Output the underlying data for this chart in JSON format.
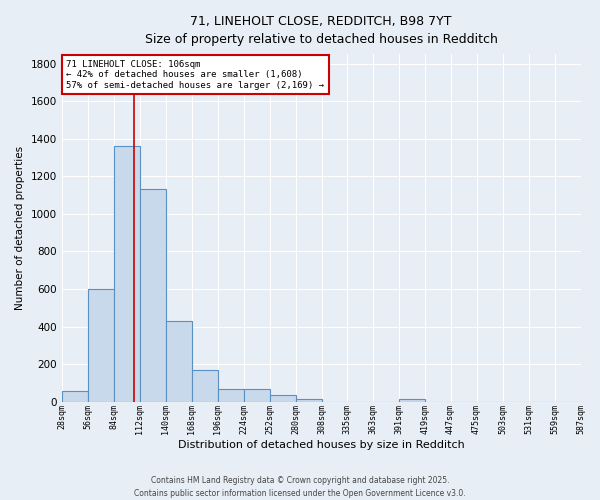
{
  "title_line1": "71, LINEHOLT CLOSE, REDDITCH, B98 7YT",
  "title_line2": "Size of property relative to detached houses in Redditch",
  "xlabel": "Distribution of detached houses by size in Redditch",
  "ylabel": "Number of detached properties",
  "bar_color": "#c9d9ec",
  "bar_edge_color": "#5a8fc2",
  "background_color": "#e8eef5",
  "grid_color": "#ffffff",
  "bins": [
    28,
    56,
    84,
    112,
    140,
    168,
    196,
    224,
    252,
    280,
    308,
    335,
    363,
    391,
    419,
    447,
    475,
    503,
    531,
    559,
    587
  ],
  "values": [
    55,
    600,
    1360,
    1130,
    430,
    170,
    65,
    65,
    35,
    15,
    0,
    0,
    0,
    15,
    0,
    0,
    0,
    0,
    0,
    0
  ],
  "property_size": 106,
  "red_line_x": 106,
  "annotation_text": "71 LINEHOLT CLOSE: 106sqm\n← 42% of detached houses are smaller (1,608)\n57% of semi-detached houses are larger (2,169) →",
  "annotation_box_color": "#ffffff",
  "annotation_box_edge": "#cc0000",
  "red_line_color": "#cc0000",
  "ylim": [
    0,
    1850
  ],
  "yticks": [
    0,
    200,
    400,
    600,
    800,
    1000,
    1200,
    1400,
    1600,
    1800
  ],
  "footer_line1": "Contains HM Land Registry data © Crown copyright and database right 2025.",
  "footer_line2": "Contains public sector information licensed under the Open Government Licence v3.0.",
  "tick_labels": [
    "28sqm",
    "56sqm",
    "84sqm",
    "112sqm",
    "140sqm",
    "168sqm",
    "196sqm",
    "224sqm",
    "252sqm",
    "280sqm",
    "308sqm",
    "335sqm",
    "363sqm",
    "391sqm",
    "419sqm",
    "447sqm",
    "475sqm",
    "503sqm",
    "531sqm",
    "559sqm",
    "587sqm"
  ]
}
